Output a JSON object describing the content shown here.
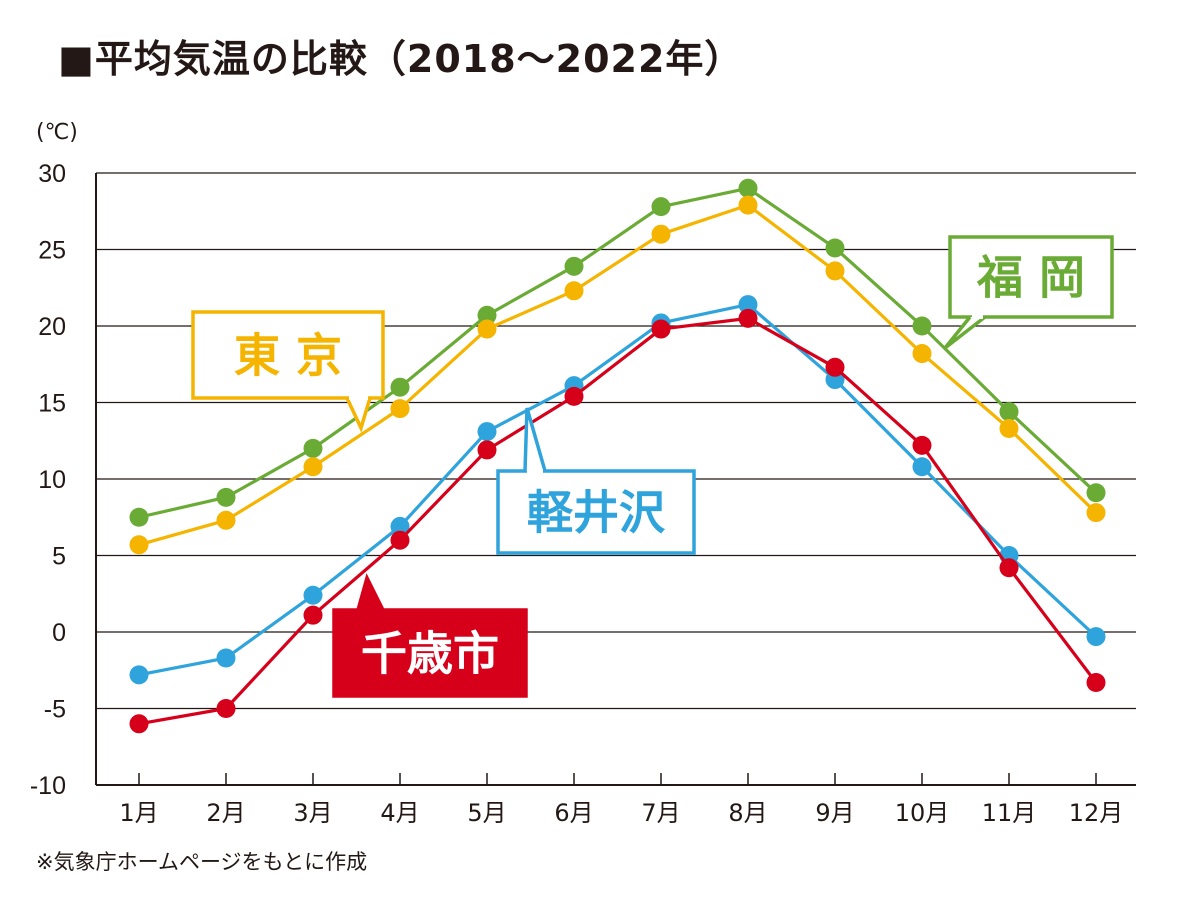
{
  "title": "■平均気温の比較（2018〜2022年）",
  "unit_label": "(℃)",
  "source_note": "※気象庁ホームページをもとに作成",
  "chart_data": {
    "type": "line",
    "title": "平均気温の比較（2018〜2022年）",
    "xlabel": "",
    "ylabel": "(℃)",
    "ylim": [
      -10,
      30
    ],
    "yticks": [
      -10,
      -5,
      0,
      5,
      10,
      15,
      20,
      25,
      30
    ],
    "grid": true,
    "legend": "labels placed near each line",
    "categories": [
      "1月",
      "2月",
      "3月",
      "4月",
      "5月",
      "6月",
      "7月",
      "8月",
      "9月",
      "10月",
      "11月",
      "12月"
    ],
    "series": [
      {
        "name": "福 岡",
        "color": "#6aab36",
        "label_style": "outline",
        "values": [
          7.5,
          8.8,
          12.0,
          16.0,
          20.7,
          23.9,
          27.8,
          29.0,
          25.1,
          20.0,
          14.4,
          9.1
        ]
      },
      {
        "name": "東 京",
        "color": "#f5b400",
        "label_style": "outline",
        "values": [
          5.7,
          7.3,
          10.8,
          14.6,
          19.8,
          22.3,
          26.0,
          27.9,
          23.6,
          18.2,
          13.3,
          7.8
        ]
      },
      {
        "name": "軽井沢",
        "color": "#2fa4dc",
        "label_style": "outline",
        "values": [
          -2.8,
          -1.7,
          2.4,
          6.9,
          13.1,
          16.1,
          20.2,
          21.4,
          16.5,
          10.8,
          5.0,
          -0.3
        ]
      },
      {
        "name": "千歳市",
        "color": "#d7001b",
        "label_style": "filled",
        "values": [
          -6.0,
          -5.0,
          1.1,
          6.0,
          11.9,
          15.4,
          19.8,
          20.5,
          17.3,
          12.2,
          4.2,
          -3.3
        ]
      }
    ]
  }
}
